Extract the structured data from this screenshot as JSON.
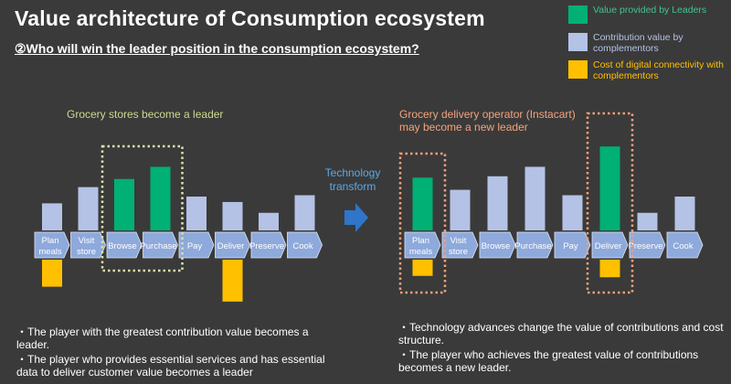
{
  "title": "Value architecture of Consumption ecosystem",
  "subtitle": "②Who will  win  the leader position in the consumption ecosystem?",
  "colors": {
    "leader": "#00b074",
    "complementor": "#b4c2e6",
    "cost": "#ffc000",
    "step": "#8ea9db",
    "arrow": "#2f75c9",
    "frame_left": "#d7e4a8",
    "frame_right": "#f0a07a",
    "bg": "#3a3a3a"
  },
  "legend": [
    {
      "label": "Value provided by Leaders",
      "color": "#00b074",
      "text_color": "#3fc58f"
    },
    {
      "label": "Contribution value by complementors",
      "color": "#b4c2e6",
      "text_color": "#b4c2e6"
    },
    {
      "label": "Cost of digital connectivity with complementors",
      "color": "#ffc000",
      "text_color": "#ffc000"
    }
  ],
  "left_panel": {
    "caption": "Grocery stores become a leader",
    "caption_color": "#c9dc8c"
  },
  "transform_label": "Technology transform",
  "right_panel": {
    "caption": "Grocery delivery operator (Instacart) may become a new leader",
    "caption_color": "#f5a37d"
  },
  "steps": [
    "Plan meals",
    "Visit store",
    "Browse",
    "Purchase",
    "Pay",
    "Deliver",
    "Preserve",
    "Cook"
  ],
  "chart_data": [
    {
      "type": "bar",
      "categories": [
        "Plan meals",
        "Visit store",
        "Browse",
        "Purchase",
        "Pay",
        "Deliver",
        "Preserve",
        "Cook"
      ],
      "series": [
        {
          "role": "complementor",
          "values": [
            2.0,
            3.2,
            0,
            0,
            2.5,
            2.1,
            1.3,
            2.6
          ]
        },
        {
          "role": "leader",
          "values": [
            0,
            0,
            3.8,
            4.7,
            0,
            0,
            0,
            0
          ]
        },
        {
          "role": "cost",
          "values": [
            2.0,
            0,
            0,
            0,
            0,
            3.1,
            0,
            0
          ]
        }
      ]
    },
    {
      "type": "bar",
      "categories": [
        "Plan meals",
        "Visit store",
        "Browse",
        "Purchase",
        "Pay",
        "Deliver",
        "Preserve",
        "Cook"
      ],
      "series": [
        {
          "role": "complementor",
          "values": [
            0,
            3.0,
            4.0,
            4.7,
            2.6,
            0,
            1.3,
            2.5
          ]
        },
        {
          "role": "leader",
          "values": [
            3.9,
            0,
            0,
            0,
            0,
            6.2,
            0,
            0
          ]
        },
        {
          "role": "cost",
          "values": [
            1.2,
            0,
            0,
            0,
            0,
            1.3,
            0,
            0
          ]
        }
      ]
    }
  ],
  "left_notes": [
    "・The player with the greatest contribution value becomes a leader.",
    "・The player who provides essential services and has essential data to deliver customer value becomes a leader"
  ],
  "right_notes": [
    "・Technology advances change the value of contributions and cost structure.",
    "・The player who achieves the greatest value of contributions becomes a new leader."
  ]
}
